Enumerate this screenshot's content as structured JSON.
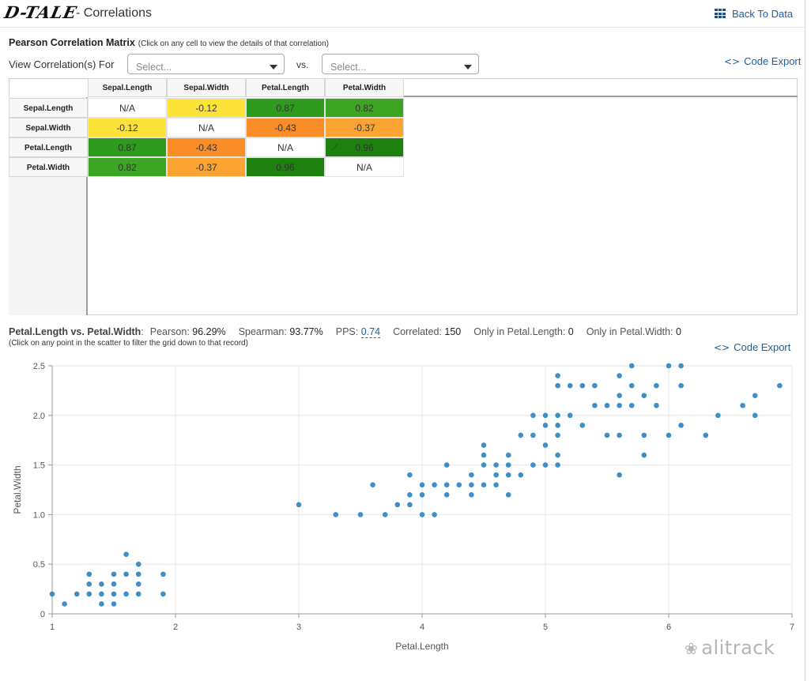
{
  "header": {
    "logo": "D-TALE",
    "title": "- Correlations",
    "back_label": "Back To Data"
  },
  "matrix": {
    "heading": "Pearson Correlation Matrix",
    "note": "(Click on any cell to view the details of that correlation)",
    "view_label": "View Correlation(s) For",
    "select1_placeholder": "Select...",
    "vs_label": "vs.",
    "select2_placeholder": "Select...",
    "code_export": "Code Export",
    "columns": [
      "Sepal.Length",
      "Sepal.Width",
      "Petal.Length",
      "Petal.Width"
    ],
    "rows": [
      {
        "label": "Sepal.Length",
        "values": [
          "N/A",
          "-0.12",
          "0.87",
          "0.82"
        ]
      },
      {
        "label": "Sepal.Width",
        "values": [
          "-0.12",
          "N/A",
          "-0.43",
          "-0.37"
        ]
      },
      {
        "label": "Petal.Length",
        "values": [
          "0.87",
          "-0.43",
          "N/A",
          "0.96"
        ]
      },
      {
        "label": "Petal.Width",
        "values": [
          "0.82",
          "-0.37",
          "0.96",
          "N/A"
        ]
      }
    ],
    "colors": {
      "na": "#ffffff",
      "-0.12": "#fde238",
      "0.87": "#2e9a1e",
      "0.82": "#3ea524",
      "-0.43": "#fb8d28",
      "-0.37": "#fca433",
      "0.96": "#1d800f"
    },
    "trend_icon": "trend-line-icon"
  },
  "details": {
    "pair": "Petal.Length vs. Petal.Width",
    "pearson_label": "Pearson:",
    "pearson": "96.29%",
    "spearman_label": "Spearman:",
    "spearman": "93.77%",
    "pps_label": "PPS:",
    "pps": "0.74",
    "correlated_label": "Correlated:",
    "correlated": "150",
    "only1_label": "Only in Petal.Length:",
    "only1": "0",
    "only2_label": "Only in Petal.Width:",
    "only2": "0",
    "scatter_note": "(Click on any point in the scatter to filter the grid down to that record)",
    "code_export": "Code Export"
  },
  "chart_data": {
    "type": "scatter",
    "xlabel": "Petal.Length",
    "ylabel": "Petal.Width",
    "xlim": [
      1,
      7
    ],
    "ylim": [
      0,
      2.5
    ],
    "x_ticks": [
      "1",
      "2",
      "3",
      "4",
      "5",
      "6",
      "7"
    ],
    "y_ticks": [
      "0",
      "0.5",
      "1.0",
      "1.5",
      "2.0",
      "2.5"
    ],
    "grid": true,
    "point_color": "#3d8fc6",
    "points": [
      [
        1.0,
        0.2
      ],
      [
        1.1,
        0.1
      ],
      [
        1.2,
        0.2
      ],
      [
        1.3,
        0.2
      ],
      [
        1.3,
        0.3
      ],
      [
        1.3,
        0.4
      ],
      [
        1.4,
        0.1
      ],
      [
        1.4,
        0.2
      ],
      [
        1.4,
        0.3
      ],
      [
        1.5,
        0.1
      ],
      [
        1.5,
        0.2
      ],
      [
        1.5,
        0.3
      ],
      [
        1.5,
        0.4
      ],
      [
        1.6,
        0.2
      ],
      [
        1.6,
        0.4
      ],
      [
        1.6,
        0.6
      ],
      [
        1.7,
        0.2
      ],
      [
        1.7,
        0.3
      ],
      [
        1.7,
        0.4
      ],
      [
        1.7,
        0.5
      ],
      [
        1.9,
        0.2
      ],
      [
        1.9,
        0.4
      ],
      [
        3.0,
        1.1
      ],
      [
        3.3,
        1.0
      ],
      [
        3.5,
        1.0
      ],
      [
        3.6,
        1.3
      ],
      [
        3.7,
        1.0
      ],
      [
        3.8,
        1.1
      ],
      [
        3.9,
        1.1
      ],
      [
        3.9,
        1.2
      ],
      [
        3.9,
        1.4
      ],
      [
        4.0,
        1.0
      ],
      [
        4.0,
        1.2
      ],
      [
        4.0,
        1.3
      ],
      [
        4.1,
        1.0
      ],
      [
        4.1,
        1.3
      ],
      [
        4.2,
        1.2
      ],
      [
        4.2,
        1.3
      ],
      [
        4.2,
        1.5
      ],
      [
        4.3,
        1.3
      ],
      [
        4.4,
        1.2
      ],
      [
        4.4,
        1.3
      ],
      [
        4.4,
        1.4
      ],
      [
        4.5,
        1.3
      ],
      [
        4.5,
        1.5
      ],
      [
        4.5,
        1.6
      ],
      [
        4.5,
        1.7
      ],
      [
        4.6,
        1.3
      ],
      [
        4.6,
        1.4
      ],
      [
        4.6,
        1.5
      ],
      [
        4.7,
        1.2
      ],
      [
        4.7,
        1.4
      ],
      [
        4.7,
        1.5
      ],
      [
        4.7,
        1.6
      ],
      [
        4.8,
        1.4
      ],
      [
        4.8,
        1.8
      ],
      [
        4.9,
        1.5
      ],
      [
        4.9,
        1.8
      ],
      [
        4.9,
        2.0
      ],
      [
        5.0,
        1.5
      ],
      [
        5.0,
        1.7
      ],
      [
        5.0,
        1.9
      ],
      [
        5.0,
        2.0
      ],
      [
        5.1,
        1.5
      ],
      [
        5.1,
        1.6
      ],
      [
        5.1,
        1.8
      ],
      [
        5.1,
        1.9
      ],
      [
        5.1,
        2.0
      ],
      [
        5.1,
        2.3
      ],
      [
        5.1,
        2.4
      ],
      [
        5.2,
        2.0
      ],
      [
        5.2,
        2.3
      ],
      [
        5.3,
        1.9
      ],
      [
        5.3,
        2.3
      ],
      [
        5.4,
        2.1
      ],
      [
        5.4,
        2.3
      ],
      [
        5.5,
        1.8
      ],
      [
        5.5,
        2.1
      ],
      [
        5.6,
        1.4
      ],
      [
        5.6,
        1.8
      ],
      [
        5.6,
        2.1
      ],
      [
        5.6,
        2.2
      ],
      [
        5.6,
        2.4
      ],
      [
        5.7,
        2.1
      ],
      [
        5.7,
        2.3
      ],
      [
        5.7,
        2.5
      ],
      [
        5.8,
        1.6
      ],
      [
        5.8,
        1.8
      ],
      [
        5.8,
        2.2
      ],
      [
        5.9,
        2.1
      ],
      [
        5.9,
        2.3
      ],
      [
        6.0,
        1.8
      ],
      [
        6.0,
        2.5
      ],
      [
        6.1,
        1.9
      ],
      [
        6.1,
        2.3
      ],
      [
        6.1,
        2.5
      ],
      [
        6.3,
        1.8
      ],
      [
        6.4,
        2.0
      ],
      [
        6.6,
        2.1
      ],
      [
        6.7,
        2.0
      ],
      [
        6.7,
        2.2
      ],
      [
        6.9,
        2.3
      ]
    ]
  },
  "watermark": "alitrack"
}
